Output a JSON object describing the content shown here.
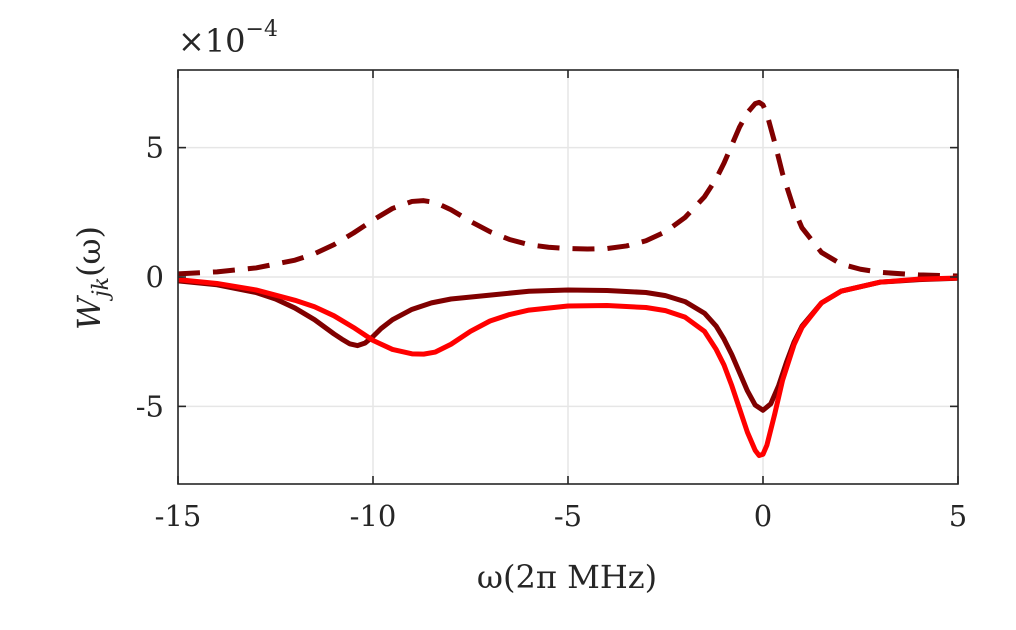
{
  "chart_data": {
    "type": "line",
    "title": "",
    "xlabel": "ω(2π MHz)",
    "ylabel_main": "W",
    "ylabel_sub": "jk",
    "ylabel_arg": "(ω)",
    "exponent_prefix": "×10",
    "exponent_power": "−4",
    "xlim": [
      -15,
      5
    ],
    "ylim": [
      -8,
      8
    ],
    "xticks": [
      -15,
      -10,
      -5,
      0,
      5
    ],
    "xtick_labels": [
      "-15",
      "-10",
      "-5",
      "0",
      "5"
    ],
    "yticks": [
      -5,
      0,
      5
    ],
    "ytick_labels": [
      "-5",
      "0",
      "5"
    ],
    "grid": true,
    "colors": {
      "dark_red": "#800000",
      "red": "#ff0000",
      "grid": "#e6e6e6",
      "axis": "#262626"
    },
    "series": [
      {
        "name": "dashed dark red (positive)",
        "style": "dashed",
        "color": "#800000",
        "x": [
          -15,
          -14,
          -13,
          -12,
          -11.5,
          -11,
          -10.5,
          -10,
          -9.5,
          -9,
          -8.7,
          -8.4,
          -8,
          -7.5,
          -7,
          -6.5,
          -6,
          -5.5,
          -5,
          -4.5,
          -4,
          -3.5,
          -3,
          -2.5,
          -2,
          -1.5,
          -1.2,
          -1,
          -0.8,
          -0.6,
          -0.4,
          -0.2,
          -0.1,
          0,
          0.1,
          0.3,
          0.5,
          0.8,
          1,
          1.5,
          2,
          2.5,
          3,
          4,
          5
        ],
        "values": [
          0.12,
          0.2,
          0.35,
          0.65,
          0.9,
          1.25,
          1.7,
          2.2,
          2.65,
          2.92,
          2.95,
          2.88,
          2.6,
          2.15,
          1.75,
          1.45,
          1.25,
          1.15,
          1.1,
          1.08,
          1.1,
          1.2,
          1.4,
          1.75,
          2.3,
          3.1,
          3.8,
          4.4,
          5.1,
          5.8,
          6.35,
          6.7,
          6.75,
          6.65,
          6.3,
          5.2,
          4.0,
          2.6,
          1.9,
          0.95,
          0.5,
          0.3,
          0.18,
          0.08,
          0.04
        ]
      },
      {
        "name": "solid dark red (negative)",
        "style": "solid",
        "color": "#800000",
        "x": [
          -15,
          -14,
          -13,
          -12.5,
          -12,
          -11.5,
          -11,
          -10.8,
          -10.6,
          -10.4,
          -10.2,
          -10,
          -9.8,
          -9.5,
          -9,
          -8.5,
          -8,
          -7,
          -6,
          -5,
          -4,
          -3,
          -2.5,
          -2,
          -1.5,
          -1.2,
          -1,
          -0.8,
          -0.6,
          -0.4,
          -0.2,
          0,
          0.2,
          0.4,
          0.6,
          0.8,
          1,
          1.5,
          2,
          3,
          4,
          5
        ],
        "values": [
          -0.15,
          -0.3,
          -0.6,
          -0.85,
          -1.2,
          -1.65,
          -2.2,
          -2.4,
          -2.58,
          -2.65,
          -2.55,
          -2.3,
          -2.0,
          -1.65,
          -1.25,
          -1.0,
          -0.85,
          -0.7,
          -0.55,
          -0.5,
          -0.52,
          -0.6,
          -0.72,
          -0.95,
          -1.4,
          -1.9,
          -2.4,
          -3.0,
          -3.7,
          -4.4,
          -4.95,
          -5.15,
          -4.9,
          -4.2,
          -3.3,
          -2.5,
          -1.9,
          -1.0,
          -0.55,
          -0.2,
          -0.1,
          -0.05
        ]
      },
      {
        "name": "solid red (negative)",
        "style": "solid",
        "color": "#ff0000",
        "x": [
          -15,
          -14,
          -13,
          -12,
          -11.5,
          -11,
          -10.5,
          -10,
          -9.5,
          -9,
          -8.7,
          -8.4,
          -8,
          -7.5,
          -7,
          -6.5,
          -6,
          -5,
          -4,
          -3,
          -2.5,
          -2,
          -1.5,
          -1.2,
          -1,
          -0.8,
          -0.6,
          -0.4,
          -0.2,
          -0.1,
          0,
          0.1,
          0.3,
          0.5,
          0.8,
          1,
          1.5,
          2,
          3,
          4,
          5
        ],
        "values": [
          -0.1,
          -0.25,
          -0.5,
          -0.9,
          -1.15,
          -1.5,
          -1.95,
          -2.45,
          -2.8,
          -2.97,
          -2.98,
          -2.9,
          -2.6,
          -2.1,
          -1.7,
          -1.45,
          -1.28,
          -1.12,
          -1.1,
          -1.18,
          -1.3,
          -1.55,
          -2.1,
          -2.8,
          -3.4,
          -4.2,
          -5.1,
          -6.0,
          -6.7,
          -6.9,
          -6.85,
          -6.5,
          -5.3,
          -4.0,
          -2.6,
          -1.95,
          -1.0,
          -0.55,
          -0.2,
          -0.08,
          -0.04
        ]
      }
    ]
  }
}
